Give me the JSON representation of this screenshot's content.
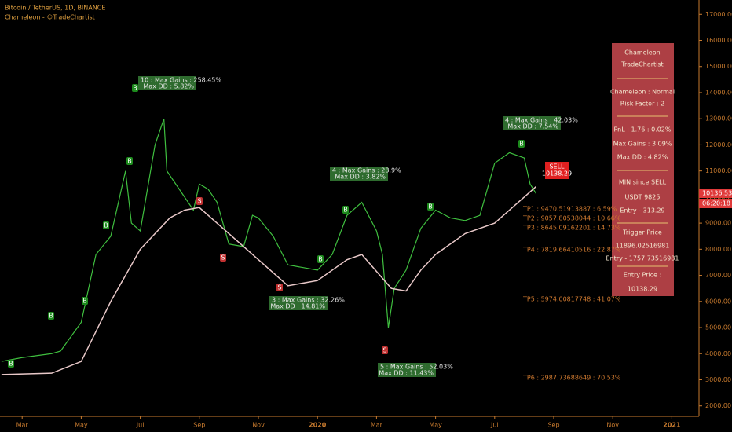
{
  "chart_data": {
    "type": "line",
    "title": "Bitcoin / TetherUS, 1D, BINANCE",
    "subtitle": "Chameleon - ©TradeChartist",
    "xlim": [
      1.25,
      24.92
    ],
    "xticks": [
      {
        "value": 2,
        "label": "Mar"
      },
      {
        "value": 4,
        "label": "May"
      },
      {
        "value": 6,
        "label": "Jul"
      },
      {
        "value": 8,
        "label": "Sep"
      },
      {
        "value": 10,
        "label": "Nov"
      },
      {
        "value": 12,
        "label": "2020"
      },
      {
        "value": 14,
        "label": "Mar"
      },
      {
        "value": 16,
        "label": "May"
      },
      {
        "value": 18,
        "label": "Jul"
      },
      {
        "value": 20,
        "label": "Sep"
      },
      {
        "value": 22,
        "label": "Nov"
      },
      {
        "value": 24,
        "label": "2021"
      }
    ],
    "ylim": [
      1600,
      17550
    ],
    "yticks": [
      {
        "value": 2000,
        "label": "2000.00"
      },
      {
        "value": 3000,
        "label": "3000.00"
      },
      {
        "value": 4000,
        "label": "4000.00"
      },
      {
        "value": 5000,
        "label": "5000.00"
      },
      {
        "value": 6000,
        "label": "6000.00"
      },
      {
        "value": 7000,
        "label": "7000.00"
      },
      {
        "value": 8000,
        "label": "8000.00"
      },
      {
        "value": 9000,
        "label": "9000.00"
      },
      {
        "value": 10000,
        "label": "10000.00"
      },
      {
        "value": 11000,
        "label": "11000.00"
      },
      {
        "value": 12000,
        "label": "12000.00"
      },
      {
        "value": 13000,
        "label": "13000.00"
      },
      {
        "value": 14000,
        "label": "14000.00"
      },
      {
        "value": 15000,
        "label": "15000.00"
      },
      {
        "value": 16000,
        "label": "16000.00"
      },
      {
        "value": 17000,
        "label": "17000.00"
      }
    ],
    "series": [
      {
        "color": "#3fbf3f",
        "x": [
          1.3,
          2,
          3,
          3.3,
          4,
          4.5,
          5,
          5.5,
          5.7,
          6,
          6.5,
          6.8,
          6.9,
          7.2,
          7.5,
          7.8,
          8,
          8.3,
          8.6,
          9,
          9.5,
          9.8,
          10,
          10.5,
          11,
          11.5,
          12,
          12.5,
          13,
          13.5,
          14,
          14.2,
          14.4,
          14.6,
          15,
          15.5,
          16,
          16.5,
          17,
          17.5,
          18,
          18.5,
          19,
          19.2,
          19.4
        ],
        "values": [
          3700,
          3850,
          4000,
          4100,
          5200,
          7800,
          8500,
          11000,
          9000,
          8700,
          12000,
          13000,
          11000,
          10500,
          10000,
          9500,
          10500,
          10300,
          9800,
          8200,
          8100,
          9300,
          9200,
          8500,
          7400,
          7300,
          7200,
          7800,
          9300,
          9800,
          8700,
          7800,
          5000,
          6500,
          7200,
          8800,
          9500,
          9200,
          9100,
          9300,
          11300,
          11700,
          11500,
          10500,
          10136
        ]
      },
      {
        "color": "#e8c8c8",
        "x": [
          1.3,
          3,
          4,
          5,
          6,
          7,
          7.5,
          8,
          11,
          12,
          13,
          13.5,
          14.5,
          15,
          15.5,
          16,
          17,
          18,
          19,
          19.4
        ],
        "values": [
          3200,
          3250,
          3700,
          6000,
          8000,
          9200,
          9500,
          9600,
          6600,
          6800,
          7600,
          7800,
          6500,
          6400,
          7200,
          7800,
          8600,
          9000,
          10000,
          10400
        ]
      }
    ],
    "annotations": [
      [
        "10 : Max Gains : 258.45%",
        "Max DD : 5.82%"
      ],
      [
        "4 : Max Gains : 28.9%",
        "Max DD : 3.82%"
      ],
      [
        "4 : Max Gains : 42.03%",
        "Max DD : 7.54%"
      ],
      [
        "3 : Max Gains : 32.26%",
        "Max DD : 14.81%"
      ],
      [
        "5 : Max Gains : 52.03%",
        "Max DD : 11.43%"
      ]
    ],
    "targets": [
      "TP1 : 9470.51913887 : 6.59%",
      "TP2 : 9057.80538044 : 10.66%",
      "TP3 : 8645.09162201 : 14.73%",
      "TP4 : 7819.66410516 : 22.87%",
      "TP5 : 5974.00817748 : 41.07%",
      "TP6 : 2987.73688649 : 70.53%"
    ],
    "markers": [
      "B",
      "B",
      "B",
      "B",
      "B",
      "B",
      "B",
      "B",
      "B",
      "B",
      "S",
      "S",
      "S",
      "S"
    ],
    "last_price": "10136.53",
    "countdown": "06:20:18",
    "entry_tag": [
      "SELL",
      "10138.29"
    ],
    "panel": [
      "Chameleon",
      "TradeChartist",
      "Chameleon : Normal",
      "Risk Factor : 2",
      "PnL : 1.76 : 0.02%",
      "Max Gains : 3.09%",
      "Max DD : 4.82%",
      "MIN since SELL",
      "USDT 9825",
      "Entry - 313.29",
      "Trigger Price",
      "11896.02516981",
      "Entry - 1757.73516981",
      "Entry Price :",
      "10138.29"
    ]
  }
}
